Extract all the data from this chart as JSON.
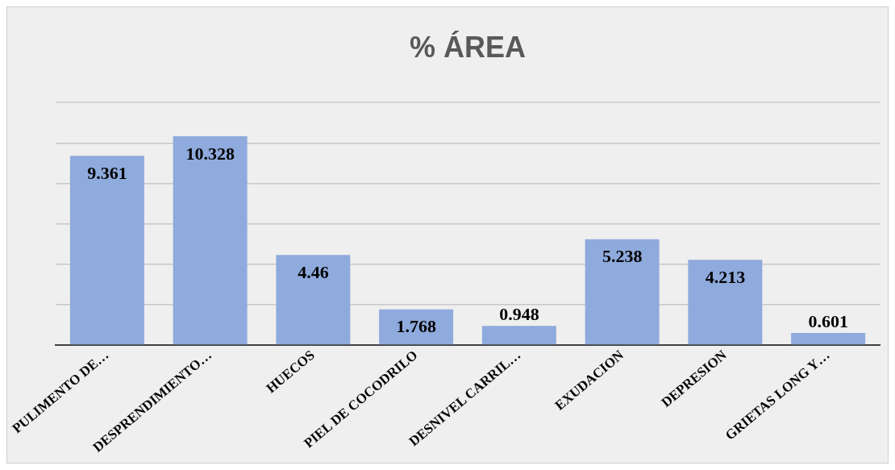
{
  "chart_data": {
    "type": "bar",
    "title": "% ÁREA",
    "categories": [
      "PULIMENTO DE…",
      "DESPRENDIMIENTO…",
      "HUECOS",
      "PIEL DE COCODRILO",
      "DESNIVEL CARRIL…",
      "EXUDACION",
      "DEPRESION",
      "GRIETAS LONG Y…"
    ],
    "values": [
      9.361,
      10.328,
      4.46,
      1.768,
      0.948,
      5.238,
      4.213,
      0.601
    ],
    "color": "#8faadc",
    "ylim": [
      0,
      12
    ],
    "yticks": [
      {
        "value": 0,
        "label": null
      },
      {
        "value": 2,
        "label": null
      },
      {
        "value": 4,
        "label": null
      },
      {
        "value": 6,
        "label": null
      },
      {
        "value": 8,
        "label": null
      },
      {
        "value": 10,
        "label": null
      },
      {
        "value": 12,
        "label": null
      }
    ],
    "tick_labels": "x",
    "grid": "y",
    "data_labels": true,
    "legend": false
  }
}
